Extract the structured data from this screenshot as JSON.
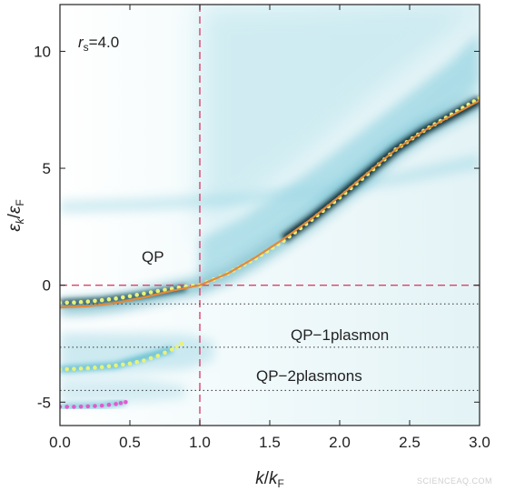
{
  "chart_data": {
    "type": "heatmap",
    "xlabel": {
      "main": "k",
      "sep": "/",
      "sub_main": "k",
      "sub": "F"
    },
    "ylabel": {
      "main": "ε",
      "sub1": "k",
      "sep": "/",
      "main2": "ε",
      "sub2": "F"
    },
    "xlim": [
      0.0,
      3.0
    ],
    "ylim": [
      -6.0,
      12.0
    ],
    "x_ticks": [
      0.0,
      0.5,
      1.0,
      1.5,
      2.0,
      2.5,
      3.0
    ],
    "x_tick_labels": [
      "0.0",
      "0.5",
      "1.0",
      "1.5",
      "2.0",
      "2.5",
      "3.0"
    ],
    "y_ticks": [
      -5,
      0,
      5,
      10
    ],
    "y_tick_labels": [
      "-5",
      "0",
      "5",
      "10"
    ],
    "parameter_label": {
      "symbol": "r",
      "sub": "s",
      "value": "=4.0"
    },
    "annotations": [
      "QP",
      "QP−1plasmon",
      "QP−2plasmons"
    ],
    "reference_lines": {
      "fermi_k": 1.0,
      "fermi_energy": 0.0,
      "dotted_levels": [
        -0.8,
        -2.65,
        -4.5
      ]
    },
    "series": [
      {
        "style": "dots",
        "color": "#e8f27a",
        "x": [
          0.0,
          0.1,
          0.2,
          0.3,
          0.4,
          0.5,
          0.6,
          0.7,
          0.8,
          0.9,
          1.0,
          1.2,
          1.4,
          1.6,
          1.8,
          2.0,
          2.2,
          2.4,
          2.6,
          2.8,
          3.0
        ],
        "y": [
          -0.75,
          -0.74,
          -0.7,
          -0.64,
          -0.57,
          -0.47,
          -0.36,
          -0.25,
          -0.15,
          -0.05,
          0.0,
          0.5,
          1.15,
          1.9,
          2.8,
          3.75,
          4.75,
          5.8,
          6.6,
          7.3,
          8.0
        ]
      },
      {
        "style": "line",
        "color": "#e08a3c",
        "x": [
          0.0,
          0.2,
          0.4,
          0.6,
          0.8,
          1.0,
          1.2,
          1.4,
          1.6,
          1.8,
          2.0,
          2.2,
          2.4,
          2.6,
          2.8,
          3.0
        ],
        "y": [
          -0.95,
          -0.9,
          -0.76,
          -0.52,
          -0.24,
          0.0,
          0.5,
          1.2,
          1.98,
          2.85,
          3.8,
          4.8,
          5.8,
          6.6,
          7.25,
          7.9
        ]
      },
      {
        "style": "dots",
        "color": "#e8f27a",
        "x": [
          0.0,
          0.1,
          0.2,
          0.3,
          0.4,
          0.5,
          0.6,
          0.7,
          0.8,
          0.87
        ],
        "y": [
          -3.6,
          -3.58,
          -3.55,
          -3.5,
          -3.43,
          -3.35,
          -3.22,
          -3.02,
          -2.75,
          -2.5
        ]
      },
      {
        "style": "dots",
        "color": "#e25ad0",
        "x": [
          0.0,
          0.1,
          0.2,
          0.3,
          0.4,
          0.47
        ],
        "y": [
          -5.2,
          -5.2,
          -5.18,
          -5.15,
          -5.08,
          -5.0
        ]
      }
    ]
  },
  "watermark": "SCIENCEAQ.COM"
}
